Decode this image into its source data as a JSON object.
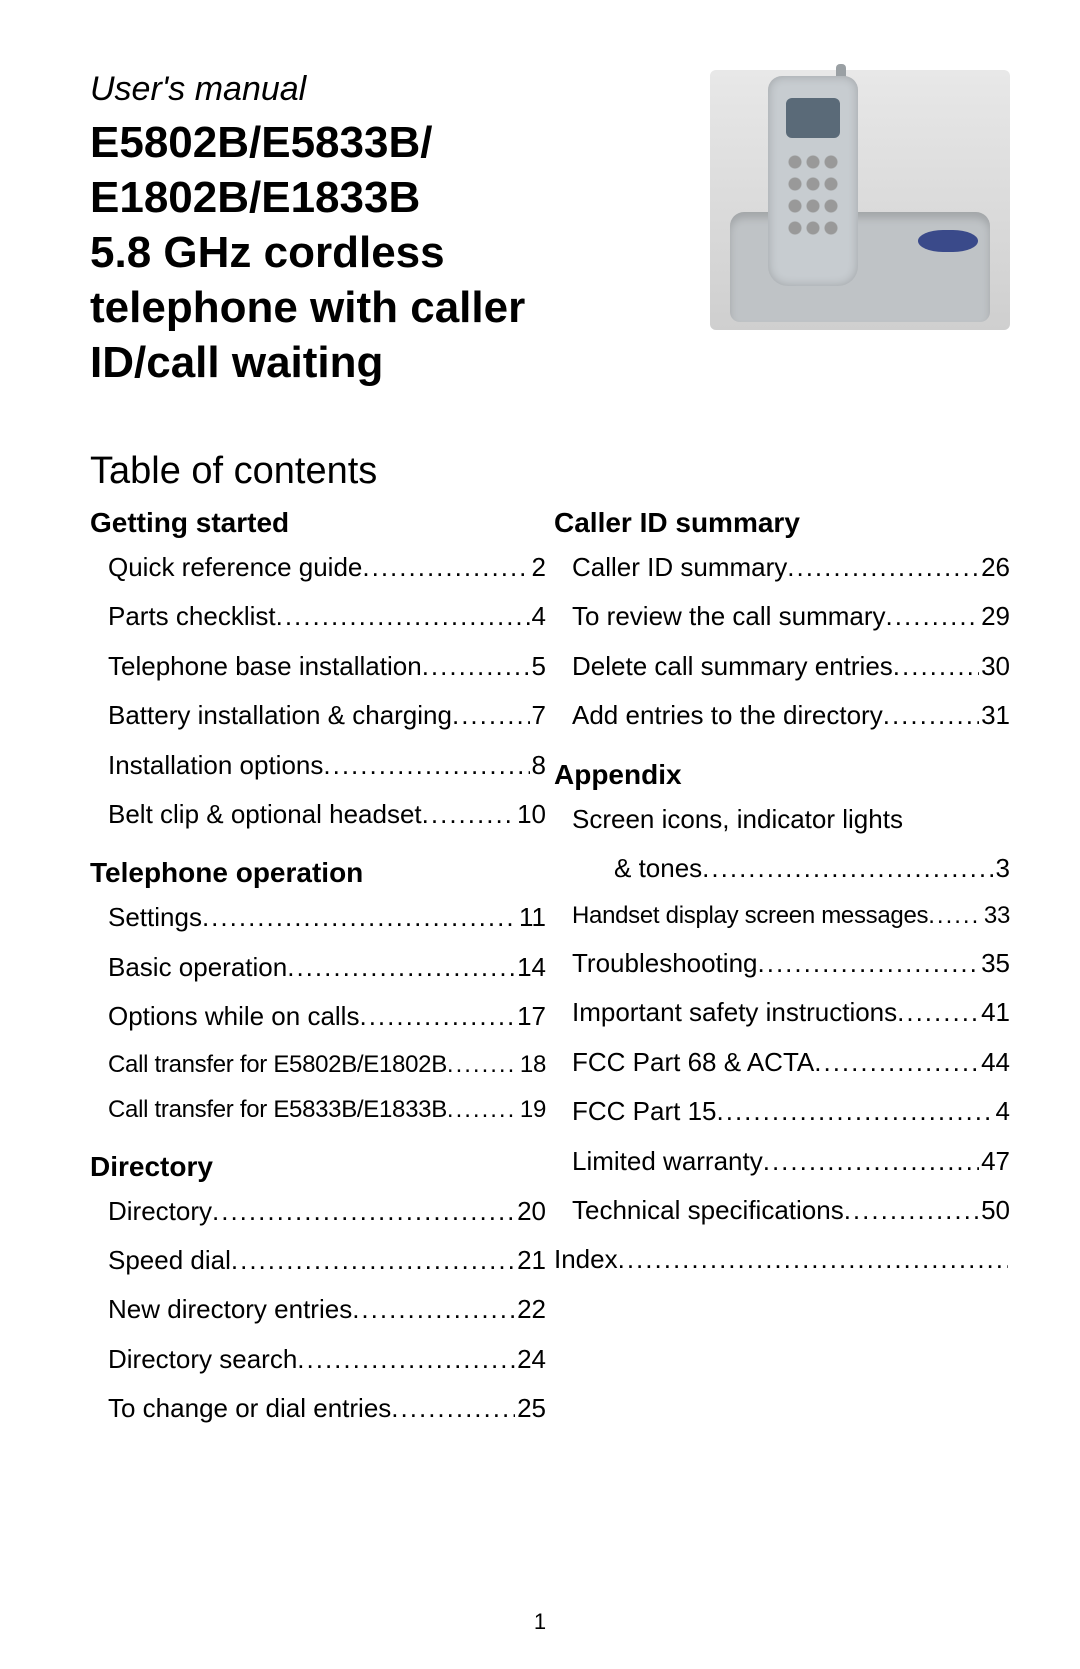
{
  "header": {
    "subtitle": "User's manual",
    "title_lines": [
      "E5802B/E5833B/",
      "E1802B/E1833B",
      "5.8 GHz cordless",
      "telephone with caller",
      "ID/call waiting"
    ]
  },
  "toc_heading": "Table of contents",
  "page_number": "1",
  "left_sections": [
    {
      "title": "Getting started",
      "items": [
        {
          "label": "Quick reference guide",
          "page": "2"
        },
        {
          "label": "Parts checklist",
          "page": "4"
        },
        {
          "label": "Telephone base installation",
          "page": "5"
        },
        {
          "label": "Battery installation & charging",
          "page": "7"
        },
        {
          "label": "Installation options",
          "page": "8"
        },
        {
          "label": "Belt clip & optional headset",
          "page": "10"
        }
      ]
    },
    {
      "title": "Telephone operation",
      "items": [
        {
          "label": "Settings",
          "page": "11"
        },
        {
          "label": "Basic operation",
          "page": "14"
        },
        {
          "label": "Options while on calls",
          "page": "17"
        },
        {
          "label": "Call transfer for E5802B/E1802B",
          "page": "18",
          "small": true
        },
        {
          "label": "Call transfer for E5833B/E1833B",
          "page": "19",
          "small": true
        }
      ]
    },
    {
      "title": "Directory",
      "items": [
        {
          "label": "Directory",
          "page": "20"
        },
        {
          "label": "Speed dial",
          "page": "21"
        },
        {
          "label": "New directory entries",
          "page": "22"
        },
        {
          "label": "Directory search",
          "page": "24"
        },
        {
          "label": "To change or dial entries",
          "page": "25"
        }
      ]
    }
  ],
  "right_sections": [
    {
      "title": "Caller ID summary",
      "items": [
        {
          "label": "Caller ID summary",
          "page": "26"
        },
        {
          "label": "To review the call summary",
          "page": "29"
        },
        {
          "label": "Delete call summary entries",
          "page": "30"
        },
        {
          "label": "Add entries to the directory",
          "page": "31"
        }
      ]
    },
    {
      "title": "Appendix",
      "items": [
        {
          "label": "Screen icons, indicator lights",
          "page": "",
          "nopage": true
        },
        {
          "label": "& tones",
          "page": "3",
          "sub": true
        },
        {
          "label": "Handset display screen messages",
          "page": "33",
          "small": true
        },
        {
          "label": "Troubleshooting",
          "page": "35"
        },
        {
          "label": "Important safety instructions",
          "page": "41"
        },
        {
          "label": "FCC Part 68 & ACTA",
          "page": "44"
        },
        {
          "label": "FCC Part 15",
          "page": "4"
        },
        {
          "label": "Limited warranty",
          "page": "47"
        },
        {
          "label": "Technical specifications",
          "page": "50"
        },
        {
          "label": "Index",
          "page": "",
          "noindent": true
        }
      ]
    }
  ]
}
